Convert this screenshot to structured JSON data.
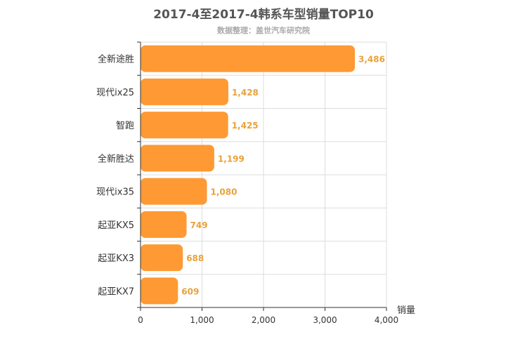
{
  "chart_data": {
    "type": "bar",
    "orientation": "horizontal",
    "title": "2017-4至2017-4韩系车型销量TOP10",
    "subtitle": "数据整理：盖世汽车研究院",
    "categories": [
      "全新途胜",
      "现代ix25",
      "智跑",
      "全新胜达",
      "现代ix35",
      "起亚KX5",
      "起亚KX3",
      "起亚KX7"
    ],
    "values": [
      3486,
      1428,
      1425,
      1199,
      1080,
      749,
      688,
      609
    ],
    "value_labels": [
      "3,486",
      "1,428",
      "1,425",
      "1,199",
      "1,080",
      "749",
      "688",
      "609"
    ],
    "xlabel": "销量",
    "ylabel": "",
    "xlim": [
      0,
      4000
    ],
    "x_ticks": [
      0,
      1000,
      2000,
      3000,
      4000
    ],
    "x_tick_labels": [
      "0",
      "1,000",
      "2,000",
      "3,000",
      "4,000"
    ],
    "grid": true,
    "bar_color": "#ff9933",
    "label_color": "#e8a23a"
  }
}
